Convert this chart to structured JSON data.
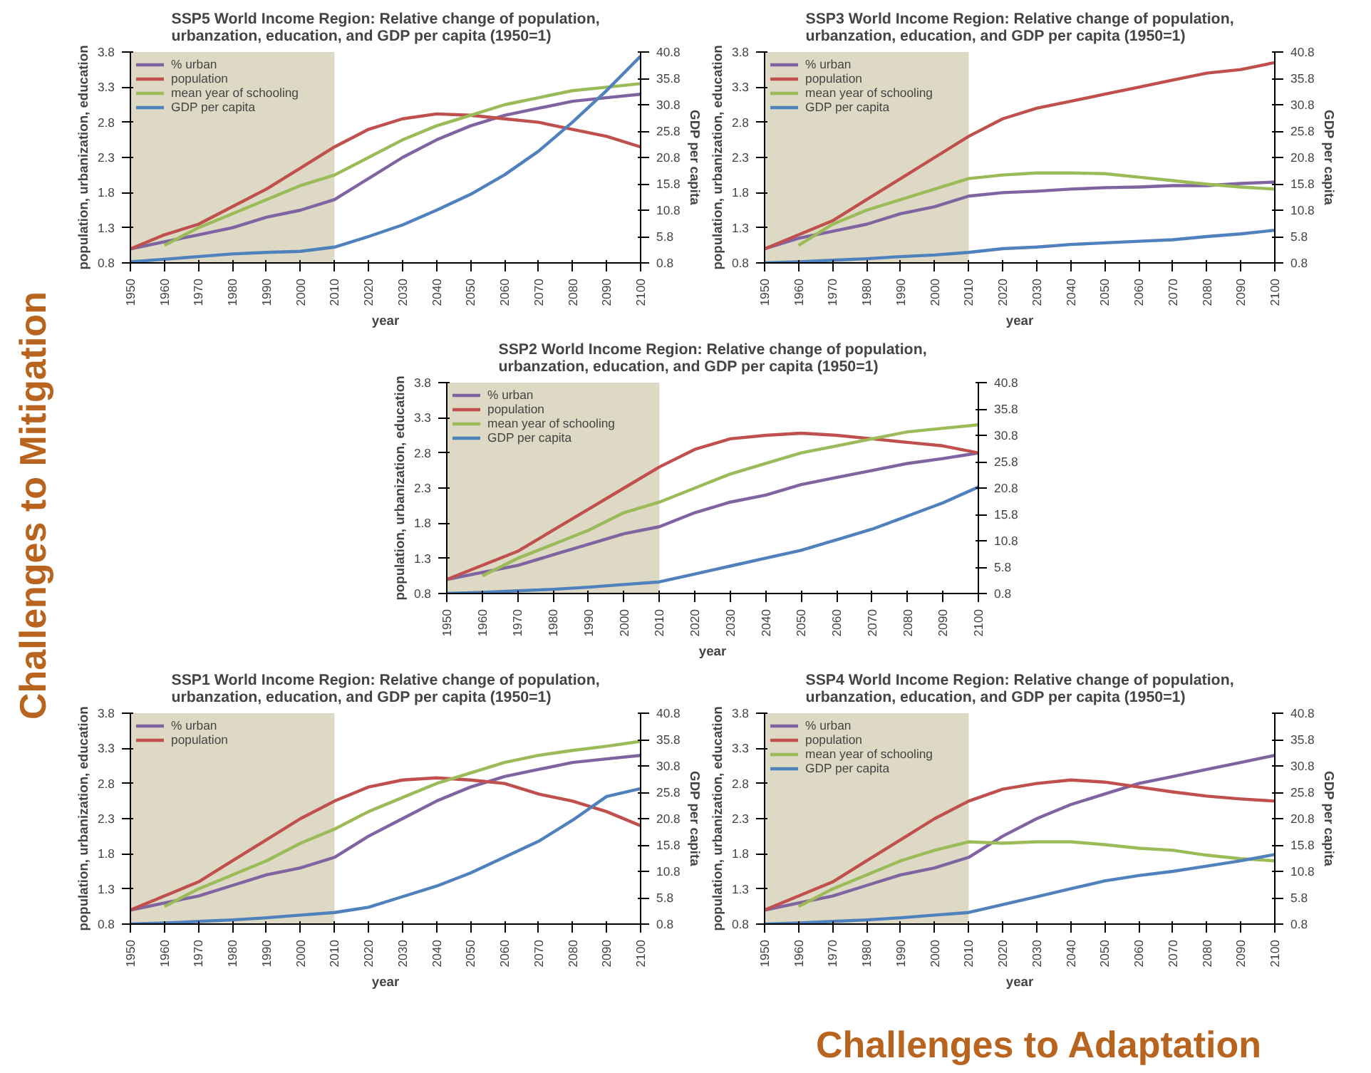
{
  "chart_data": [
    {
      "type": "line",
      "title": "SSP5 World Income Region: Relative change of population, urbanzation, education, and GDP per capita (1950=1)",
      "xlabel": "year",
      "ylabel": "population, urbanization, education",
      "y2label": "GDP per capita",
      "x": [
        1950,
        1960,
        1970,
        1980,
        1990,
        2000,
        2010,
        2020,
        2030,
        2040,
        2050,
        2060,
        2070,
        2080,
        2090,
        2100
      ],
      "xlim": [
        1950,
        2100
      ],
      "xticks": [
        1950,
        1960,
        1970,
        1980,
        1990,
        2000,
        2010,
        2020,
        2030,
        2040,
        2050,
        2060,
        2070,
        2080,
        2090,
        2100
      ],
      "ylim": [
        0.8,
        3.8
      ],
      "yticks": [
        0.8,
        1.3,
        1.8,
        2.3,
        2.8,
        3.3,
        3.8
      ],
      "y2lim": [
        0.8,
        40.8
      ],
      "y2ticks": [
        0.8,
        5.8,
        10.8,
        15.8,
        20.8,
        25.8,
        30.8,
        35.8,
        40.8
      ],
      "legend": "top left",
      "bands": [
        {
          "axis": "x",
          "from": 1950,
          "to": 2010,
          "color": "#ddd9c4"
        }
      ],
      "series": [
        {
          "name": "% urban",
          "color": "#8064a2",
          "values": [
            1.0,
            1.1,
            1.2,
            1.3,
            1.45,
            1.55,
            1.7,
            2.0,
            2.3,
            2.55,
            2.75,
            2.9,
            3.0,
            3.1,
            3.15,
            3.2
          ]
        },
        {
          "name": "population",
          "color": "#c0504d",
          "values": [
            1.0,
            1.2,
            1.35,
            1.6,
            1.85,
            2.15,
            2.45,
            2.7,
            2.85,
            2.92,
            2.9,
            2.85,
            2.8,
            2.7,
            2.6,
            2.45
          ]
        },
        {
          "name": "mean year of schooling",
          "color": "#9bbb59",
          "values": [
            null,
            1.05,
            1.3,
            1.5,
            1.7,
            1.9,
            2.05,
            2.3,
            2.55,
            2.75,
            2.9,
            3.05,
            3.15,
            3.25,
            3.3,
            3.35
          ]
        },
        {
          "name": "GDP per capita",
          "color": "#4f81bd",
          "axis": "y2",
          "values": [
            1.0,
            1.5,
            2.0,
            2.5,
            2.8,
            3.0,
            3.8,
            5.8,
            8.0,
            10.8,
            13.8,
            17.5,
            22.0,
            27.5,
            33.5,
            40.0
          ]
        }
      ]
    },
    {
      "type": "line",
      "title": "SSP3 World Income Region: Relative change of population, urbanzation, education, and GDP per capita (1950=1)",
      "xlabel": "year",
      "ylabel": "population, urbanization, education",
      "y2label": "GDP per capita",
      "x": [
        1950,
        1960,
        1970,
        1980,
        1990,
        2000,
        2010,
        2020,
        2030,
        2040,
        2050,
        2060,
        2070,
        2080,
        2090,
        2100
      ],
      "xlim": [
        1950,
        2100
      ],
      "xticks": [
        1950,
        1960,
        1970,
        1980,
        1990,
        2000,
        2010,
        2020,
        2030,
        2040,
        2050,
        2060,
        2070,
        2080,
        2090,
        2100
      ],
      "ylim": [
        0.8,
        3.8
      ],
      "yticks": [
        0.8,
        1.3,
        1.8,
        2.3,
        2.8,
        3.3,
        3.8
      ],
      "y2lim": [
        0.8,
        40.8
      ],
      "y2ticks": [
        0.8,
        5.8,
        10.8,
        15.8,
        20.8,
        25.8,
        30.8,
        35.8,
        40.8
      ],
      "legend": "top left",
      "bands": [
        {
          "axis": "x",
          "from": 1950,
          "to": 2010,
          "color": "#ddd9c4"
        }
      ],
      "series": [
        {
          "name": "% urban",
          "color": "#8064a2",
          "values": [
            1.0,
            1.15,
            1.25,
            1.35,
            1.5,
            1.6,
            1.75,
            1.8,
            1.82,
            1.85,
            1.87,
            1.88,
            1.9,
            1.9,
            1.93,
            1.95
          ]
        },
        {
          "name": "population",
          "color": "#c0504d",
          "values": [
            1.0,
            1.2,
            1.4,
            1.7,
            2.0,
            2.3,
            2.6,
            2.85,
            3.0,
            3.1,
            3.2,
            3.3,
            3.4,
            3.5,
            3.55,
            3.65
          ]
        },
        {
          "name": "mean year of schooling",
          "color": "#9bbb59",
          "values": [
            null,
            1.05,
            1.35,
            1.55,
            1.7,
            1.85,
            2.0,
            2.05,
            2.08,
            2.08,
            2.07,
            2.02,
            1.97,
            1.92,
            1.88,
            1.85
          ]
        },
        {
          "name": "GDP per capita",
          "color": "#4f81bd",
          "axis": "y2",
          "values": [
            0.8,
            1.0,
            1.3,
            1.6,
            2.0,
            2.3,
            2.8,
            3.5,
            3.8,
            4.3,
            4.6,
            4.9,
            5.2,
            5.8,
            6.3,
            7.0
          ]
        }
      ]
    },
    {
      "type": "line",
      "title": "SSP2 World Income Region: Relative change of population, urbanzation, education, and GDP per capita (1950=1)",
      "xlabel": "year",
      "ylabel": "population, urbanization, education",
      "x": [
        1950,
        1960,
        1970,
        1980,
        1990,
        2000,
        2010,
        2020,
        2030,
        2040,
        2050,
        2060,
        2070,
        2080,
        2090,
        2100
      ],
      "xlim": [
        1950,
        2100
      ],
      "xticks": [
        1950,
        1960,
        1970,
        1980,
        1990,
        2000,
        2010,
        2020,
        2030,
        2040,
        2050,
        2060,
        2070,
        2080,
        2090,
        2100
      ],
      "ylim": [
        0.8,
        3.8
      ],
      "yticks": [
        0.8,
        1.3,
        1.8,
        2.3,
        2.8,
        3.3,
        3.8
      ],
      "y2lim": [
        0.8,
        40.8
      ],
      "y2ticks": [
        0.8,
        5.8,
        10.8,
        15.8,
        20.8,
        25.8,
        30.8,
        35.8,
        40.8
      ],
      "legend": "top left",
      "bands": [
        {
          "axis": "x",
          "from": 1950,
          "to": 2010,
          "color": "#ddd9c4"
        }
      ],
      "series": [
        {
          "name": "% urban",
          "color": "#8064a2",
          "values": [
            1.0,
            1.1,
            1.2,
            1.35,
            1.5,
            1.65,
            1.75,
            1.95,
            2.1,
            2.2,
            2.35,
            2.45,
            2.55,
            2.65,
            2.72,
            2.8
          ]
        },
        {
          "name": "population",
          "color": "#c0504d",
          "values": [
            1.0,
            1.2,
            1.4,
            1.7,
            2.0,
            2.3,
            2.6,
            2.85,
            3.0,
            3.05,
            3.08,
            3.05,
            3.0,
            2.95,
            2.9,
            2.8
          ]
        },
        {
          "name": "mean year of schooling",
          "color": "#9bbb59",
          "values": [
            null,
            1.05,
            1.3,
            1.5,
            1.7,
            1.95,
            2.1,
            2.3,
            2.5,
            2.65,
            2.8,
            2.9,
            3.0,
            3.1,
            3.15,
            3.2
          ]
        },
        {
          "name": "GDP per capita",
          "color": "#4f81bd",
          "axis": "y2",
          "values": [
            0.8,
            1.0,
            1.3,
            1.6,
            2.0,
            2.5,
            3.0,
            4.5,
            6.0,
            7.5,
            9.0,
            11.0,
            13.0,
            15.5,
            18.0,
            21.0
          ]
        }
      ]
    },
    {
      "type": "line",
      "title": "SSP1 World Income Region: Relative change of population, urbanzation, education, and GDP per capita (1950=1)",
      "xlabel": "year",
      "ylabel": "population, urbanization, education",
      "y2label": "GDP per capita",
      "x": [
        1950,
        1960,
        1970,
        1980,
        1990,
        2000,
        2010,
        2020,
        2030,
        2040,
        2050,
        2060,
        2070,
        2080,
        2090,
        2100
      ],
      "xlim": [
        1950,
        2100
      ],
      "xticks": [
        1950,
        1960,
        1970,
        1980,
        1990,
        2000,
        2010,
        2020,
        2030,
        2040,
        2050,
        2060,
        2070,
        2080,
        2090,
        2100
      ],
      "ylim": [
        0.8,
        3.8
      ],
      "yticks": [
        0.8,
        1.3,
        1.8,
        2.3,
        2.8,
        3.3,
        3.8
      ],
      "y2lim": [
        0.8,
        40.8
      ],
      "y2ticks": [
        0.8,
        5.8,
        10.8,
        15.8,
        20.8,
        25.8,
        30.8,
        35.8,
        40.8
      ],
      "legend": "top left",
      "bands": [
        {
          "axis": "x",
          "from": 1950,
          "to": 2010,
          "color": "#ddd9c4"
        }
      ],
      "series": [
        {
          "name": "% urban",
          "color": "#8064a2",
          "values": [
            1.0,
            1.1,
            1.2,
            1.35,
            1.5,
            1.6,
            1.75,
            2.05,
            2.3,
            2.55,
            2.75,
            2.9,
            3.0,
            3.1,
            3.15,
            3.2
          ]
        },
        {
          "name": "population",
          "color": "#c0504d",
          "values": [
            1.0,
            1.2,
            1.4,
            1.7,
            2.0,
            2.3,
            2.55,
            2.75,
            2.85,
            2.88,
            2.85,
            2.8,
            2.65,
            2.55,
            2.4,
            2.2
          ]
        },
        {
          "color": "#9bbb59",
          "values": [
            null,
            1.05,
            1.3,
            1.5,
            1.7,
            1.95,
            2.15,
            2.4,
            2.6,
            2.8,
            2.95,
            3.1,
            3.2,
            3.27,
            3.33,
            3.4
          ]
        },
        {
          "color": "#4f81bd",
          "axis": "y2",
          "values": [
            0.8,
            1.0,
            1.3,
            1.6,
            2.0,
            2.5,
            3.0,
            4.0,
            6.0,
            8.0,
            10.5,
            13.5,
            16.5,
            20.5,
            25.0,
            26.5
          ]
        }
      ]
    },
    {
      "type": "line",
      "title": "SSP4 World Income Region: Relative change of population, urbanzation, education, and GDP per capita (1950=1)",
      "xlabel": "year",
      "ylabel": "population, urbanization, education",
      "y2label": "GDP per capita",
      "x": [
        1950,
        1960,
        1970,
        1980,
        1990,
        2000,
        2010,
        2020,
        2030,
        2040,
        2050,
        2060,
        2070,
        2080,
        2090,
        2100
      ],
      "xlim": [
        1950,
        2100
      ],
      "xticks": [
        1950,
        1960,
        1970,
        1980,
        1990,
        2000,
        2010,
        2020,
        2030,
        2040,
        2050,
        2060,
        2070,
        2080,
        2090,
        2100
      ],
      "ylim": [
        0.8,
        3.8
      ],
      "yticks": [
        0.8,
        1.3,
        1.8,
        2.3,
        2.8,
        3.3,
        3.8
      ],
      "y2lim": [
        0.8,
        40.8
      ],
      "y2ticks": [
        0.8,
        5.8,
        10.8,
        15.8,
        20.8,
        25.8,
        30.8,
        35.8,
        40.8
      ],
      "legend": "top left",
      "bands": [
        {
          "axis": "x",
          "from": 1950,
          "to": 2010,
          "color": "#ddd9c4"
        }
      ],
      "series": [
        {
          "name": "% urban",
          "color": "#8064a2",
          "values": [
            1.0,
            1.1,
            1.2,
            1.35,
            1.5,
            1.6,
            1.75,
            2.05,
            2.3,
            2.5,
            2.65,
            2.8,
            2.9,
            3.0,
            3.1,
            3.2
          ]
        },
        {
          "name": "population",
          "color": "#c0504d",
          "values": [
            1.0,
            1.2,
            1.4,
            1.7,
            2.0,
            2.3,
            2.55,
            2.72,
            2.8,
            2.85,
            2.82,
            2.75,
            2.68,
            2.62,
            2.58,
            2.55
          ]
        },
        {
          "name": "mean year of schooling",
          "color": "#9bbb59",
          "values": [
            null,
            1.05,
            1.3,
            1.5,
            1.7,
            1.85,
            1.97,
            1.95,
            1.97,
            1.97,
            1.93,
            1.88,
            1.85,
            1.78,
            1.73,
            1.7
          ]
        },
        {
          "name": "GDP per capita",
          "color": "#4f81bd",
          "axis": "y2",
          "values": [
            0.8,
            1.0,
            1.3,
            1.6,
            2.0,
            2.5,
            3.0,
            4.5,
            6.0,
            7.5,
            9.0,
            10.0,
            10.8,
            11.8,
            12.8,
            14.0
          ]
        }
      ]
    },
    {
      "type": "other",
      "annotations": [
        "Challenges to Mitigation",
        "Challenges to Adaptation"
      ]
    }
  ]
}
